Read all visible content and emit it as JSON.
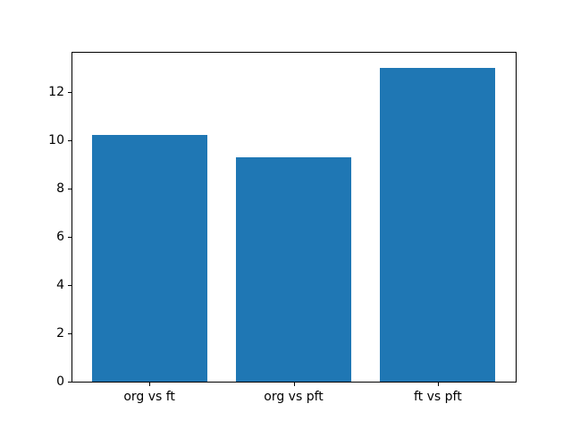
{
  "chart_data": {
    "type": "bar",
    "title": "",
    "xlabel": "",
    "ylabel": "",
    "categories": [
      "org vs ft",
      "org vs pft",
      "ft vs pft"
    ],
    "values": [
      10.2,
      9.3,
      13.0
    ],
    "yticks": [
      0,
      2,
      4,
      6,
      8,
      10,
      12
    ],
    "ylim": [
      0,
      13.65
    ],
    "xlim": [
      -0.54,
      2.54
    ],
    "bar_width": 0.8,
    "bar_color": "#1f77b4",
    "background_color": "#ffffff",
    "spine_color": "#000000",
    "tick_label_color": "#000000",
    "grid": false,
    "legend": null
  }
}
